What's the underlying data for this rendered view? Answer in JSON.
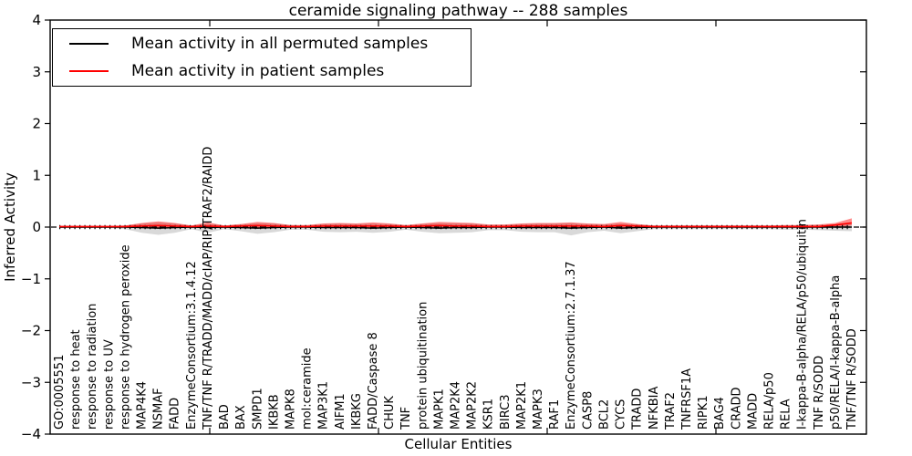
{
  "figure": {
    "title": "ceramide signaling pathway -- 288 samples",
    "xlabel": "Cellular Entities",
    "ylabel": "Inferred Activity"
  },
  "legend": {
    "items": [
      {
        "label": "Mean activity in all permuted samples",
        "color": "#000000"
      },
      {
        "label": "Mean activity in patient samples",
        "color": "#ff0000"
      }
    ]
  },
  "chart_data": {
    "type": "line",
    "title": "ceramide signaling pathway -- 288 samples",
    "xlabel": "Cellular Entities",
    "ylabel": "Inferred Activity",
    "ylim": [
      -4,
      4
    ],
    "yticks": [
      -4,
      -3,
      -2,
      -1,
      0,
      1,
      2,
      3,
      4
    ],
    "grid": false,
    "legend_position": "upper left",
    "zero_line_style": "dashed",
    "x_tick_labels_rotation": 90,
    "categories": [
      "GO:0005551",
      "response to heat",
      "response to radiation",
      "response to UV",
      "response to hydrogen peroxide",
      "MAP4K4",
      "NSMAF",
      "FADD",
      "EnzymeConsortium:3.1.4.12",
      "TNF/TNF R/TRADD/MADD/cIAP/RIP/TRAF2/RAIDD",
      "BAD",
      "BAX",
      "SMPD1",
      "IKBKB",
      "MAPK8",
      "mol:ceramide",
      "MAP3K1",
      "AIFM1",
      "IKBKG",
      "FADD/Caspase 8",
      "CHUK",
      "TNF",
      "protein ubiquitination",
      "MAPK1",
      "MAP2K4",
      "MAP2K2",
      "KSR1",
      "BIRC3",
      "MAP2K1",
      "MAPK3",
      "RAF1",
      "EnzymeConsortium:2.7.1.37",
      "CASP8",
      "BCL2",
      "CYCS",
      "TRADD",
      "NFKBIA",
      "TRAF2",
      "TNFRSF1A",
      "RIPK1",
      "BAG4",
      "CRADD",
      "MADD",
      "RELA/p50",
      "RELA",
      "I-kappa-B-alpha/RELA/p50/ubiquitin",
      "TNF R/SODD",
      "p50/RELA/I-kappa-B-alpha",
      "TNF/TNF R/SODD"
    ],
    "series": [
      {
        "name": "Mean activity in all permuted samples",
        "color": "#000000",
        "values": [
          0,
          0,
          0,
          0,
          0,
          -0.01,
          -0.02,
          -0.01,
          0,
          -0.01,
          0,
          -0.01,
          -0.02,
          -0.01,
          0,
          0,
          -0.01,
          -0.01,
          -0.01,
          -0.02,
          -0.01,
          0,
          -0.01,
          -0.02,
          -0.01,
          -0.01,
          0,
          0,
          -0.01,
          -0.01,
          -0.01,
          -0.02,
          -0.01,
          0,
          -0.02,
          -0.01,
          0,
          0,
          0,
          0,
          0,
          0,
          0,
          0,
          0,
          0,
          0,
          0,
          0
        ]
      },
      {
        "name": "Mean activity in patient samples",
        "color": "#ff0000",
        "values": [
          0.01,
          0.01,
          0.01,
          0.01,
          0.01,
          0.02,
          0.03,
          0.02,
          0.01,
          0.02,
          0.01,
          0.02,
          0.03,
          0.02,
          0.01,
          0.01,
          0.02,
          0.02,
          0.02,
          0.02,
          0.02,
          0.01,
          0.02,
          0.03,
          0.02,
          0.02,
          0.01,
          0.01,
          0.02,
          0.02,
          0.02,
          0.02,
          0.02,
          0.01,
          0.03,
          0.02,
          0.01,
          0.01,
          0.01,
          0.01,
          0.01,
          0.01,
          0.01,
          0.01,
          0.01,
          0.01,
          0.01,
          0.04,
          0.08
        ]
      }
    ],
    "bands": [
      {
        "name": "permuted-range",
        "color": "#000000",
        "opacity": 0.15,
        "upper": [
          0.015,
          0.015,
          0.015,
          0.015,
          0.03,
          0.07,
          0.09,
          0.07,
          0.03,
          0.07,
          0.03,
          0.05,
          0.08,
          0.07,
          0.04,
          0.03,
          0.06,
          0.07,
          0.06,
          0.07,
          0.06,
          0.03,
          0.06,
          0.08,
          0.07,
          0.07,
          0.04,
          0.04,
          0.06,
          0.07,
          0.07,
          0.08,
          0.06,
          0.05,
          0.07,
          0.05,
          0.03,
          0.03,
          0.03,
          0.03,
          0.03,
          0.03,
          0.03,
          0.03,
          0.03,
          0.04,
          0.04,
          0.05,
          0.06
        ],
        "lower": [
          -0.02,
          -0.02,
          -0.02,
          -0.02,
          -0.04,
          -0.11,
          -0.15,
          -0.11,
          -0.04,
          -0.11,
          -0.04,
          -0.08,
          -0.13,
          -0.1,
          -0.05,
          -0.05,
          -0.09,
          -0.1,
          -0.09,
          -0.11,
          -0.09,
          -0.05,
          -0.09,
          -0.12,
          -0.11,
          -0.1,
          -0.06,
          -0.06,
          -0.09,
          -0.1,
          -0.1,
          -0.16,
          -0.1,
          -0.07,
          -0.12,
          -0.08,
          -0.04,
          -0.04,
          -0.04,
          -0.04,
          -0.04,
          -0.04,
          -0.04,
          -0.04,
          -0.05,
          -0.05,
          -0.06,
          -0.07,
          -0.08
        ]
      },
      {
        "name": "patient-range",
        "color": "#ff0000",
        "opacity": 0.45,
        "upper": [
          0.02,
          0.02,
          0.02,
          0.02,
          0.03,
          0.08,
          0.11,
          0.08,
          0.03,
          0.09,
          0.03,
          0.06,
          0.1,
          0.08,
          0.04,
          0.04,
          0.07,
          0.08,
          0.07,
          0.09,
          0.07,
          0.04,
          0.07,
          0.1,
          0.09,
          0.08,
          0.05,
          0.05,
          0.07,
          0.08,
          0.08,
          0.09,
          0.07,
          0.06,
          0.1,
          0.06,
          0.03,
          0.03,
          0.03,
          0.03,
          0.03,
          0.03,
          0.03,
          0.03,
          0.04,
          0.04,
          0.05,
          0.08,
          0.17
        ],
        "lower": [
          -0.01,
          -0.01,
          -0.01,
          -0.01,
          -0.01,
          -0.02,
          -0.03,
          -0.02,
          -0.01,
          -0.02,
          -0.01,
          -0.02,
          -0.03,
          -0.02,
          -0.01,
          -0.01,
          -0.02,
          -0.02,
          -0.02,
          -0.02,
          -0.02,
          -0.01,
          -0.02,
          -0.03,
          -0.02,
          -0.02,
          -0.01,
          -0.01,
          -0.02,
          -0.02,
          -0.02,
          -0.02,
          -0.02,
          -0.01,
          -0.03,
          -0.02,
          -0.01,
          -0.01,
          -0.01,
          -0.01,
          -0.01,
          -0.01,
          -0.01,
          -0.01,
          -0.01,
          -0.01,
          -0.01,
          -0.01,
          0.03
        ]
      }
    ]
  }
}
